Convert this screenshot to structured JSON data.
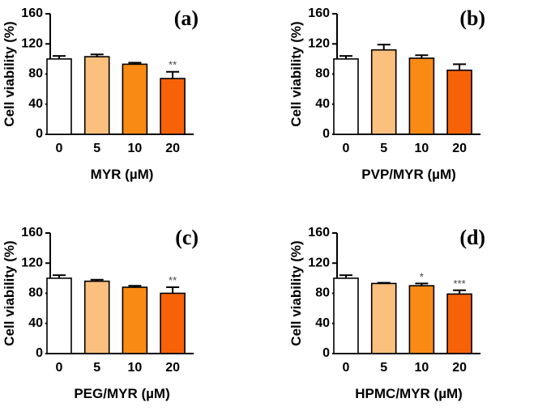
{
  "colors": {
    "bar_fills": [
      "#ffffff",
      "#fbbf7e",
      "#f98a14",
      "#f76208"
    ],
    "axis": "#000000",
    "significance": "#444444"
  },
  "chart_data": [
    {
      "type": "bar",
      "panel_label": "(a)",
      "categories": [
        "0",
        "5",
        "10",
        "20"
      ],
      "values": [
        100,
        103,
        93,
        74
      ],
      "errors": [
        4,
        3,
        2,
        9
      ],
      "significance": [
        "",
        "",
        "",
        "**"
      ],
      "xlabel": "MYR (µM)",
      "ylabel": "Cell viability (%)",
      "ylim": [
        0,
        160
      ],
      "yticks": [
        "0",
        "40",
        "80",
        "120",
        "160"
      ]
    },
    {
      "type": "bar",
      "panel_label": "(b)",
      "categories": [
        "0",
        "5",
        "10",
        "20"
      ],
      "values": [
        100,
        112,
        101,
        85
      ],
      "errors": [
        4,
        7,
        4,
        8
      ],
      "significance": [
        "",
        "",
        "",
        ""
      ],
      "xlabel": "PVP/MYR (µM)",
      "ylabel": "Cell viability (%)",
      "ylim": [
        0,
        160
      ],
      "yticks": [
        "0",
        "40",
        "80",
        "120",
        "160"
      ]
    },
    {
      "type": "bar",
      "panel_label": "(c)",
      "categories": [
        "0",
        "5",
        "10",
        "20"
      ],
      "values": [
        100,
        96,
        88,
        80
      ],
      "errors": [
        4,
        2,
        2,
        8
      ],
      "significance": [
        "",
        "",
        "",
        "**"
      ],
      "xlabel": "PEG/MYR (µM)",
      "ylabel": "Cell viability (%)",
      "ylim": [
        0,
        160
      ],
      "yticks": [
        "0",
        "40",
        "80",
        "120",
        "160"
      ]
    },
    {
      "type": "bar",
      "panel_label": "(d)",
      "categories": [
        "0",
        "5",
        "10",
        "20"
      ],
      "values": [
        100,
        93,
        90,
        79
      ],
      "errors": [
        4,
        1,
        3,
        5
      ],
      "significance": [
        "",
        "",
        "*",
        "***"
      ],
      "xlabel": "HPMC/MYR (µM)",
      "ylabel": "Cell viability (%)",
      "ylim": [
        0,
        160
      ],
      "yticks": [
        "0",
        "40",
        "80",
        "120",
        "160"
      ]
    }
  ]
}
